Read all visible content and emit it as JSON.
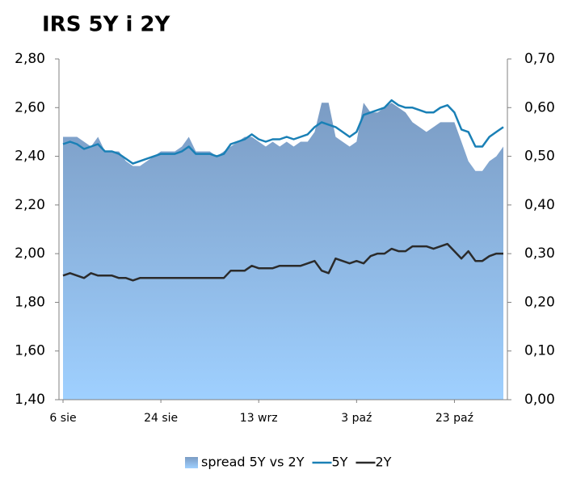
{
  "chart_data": {
    "type": "line",
    "title": "IRS 5Y i 2Y",
    "categories": [
      "6 sie",
      null,
      null,
      null,
      null,
      null,
      null,
      null,
      null,
      null,
      null,
      null,
      null,
      null,
      "24 sie",
      null,
      null,
      null,
      null,
      null,
      null,
      null,
      null,
      null,
      null,
      null,
      null,
      null,
      "13 wrz",
      null,
      null,
      null,
      null,
      null,
      null,
      null,
      null,
      null,
      null,
      null,
      null,
      null,
      "3 paź",
      null,
      null,
      null,
      null,
      null,
      null,
      null,
      null,
      null,
      null,
      null,
      null,
      null,
      "23 paź",
      null,
      null,
      null,
      null,
      null,
      null,
      null
    ],
    "series": [
      {
        "name": "spread 5Y vs 2Y",
        "type": "area",
        "axis": "y2",
        "color": "#7b9cc4",
        "color_bottom": "#9fd0ff",
        "values": [
          0.54,
          0.54,
          0.54,
          0.53,
          0.52,
          0.54,
          0.51,
          0.51,
          0.51,
          0.49,
          0.48,
          0.48,
          0.49,
          0.5,
          0.51,
          0.51,
          0.51,
          0.52,
          0.54,
          0.51,
          0.51,
          0.51,
          0.5,
          0.51,
          0.52,
          0.53,
          0.54,
          0.54,
          0.53,
          0.52,
          0.53,
          0.52,
          0.53,
          0.52,
          0.53,
          0.53,
          0.55,
          0.61,
          0.61,
          0.54,
          0.53,
          0.52,
          0.53,
          0.61,
          0.59,
          0.59,
          0.6,
          0.61,
          0.6,
          0.59,
          0.57,
          0.56,
          0.55,
          0.56,
          0.57,
          0.57,
          0.57,
          0.53,
          0.49,
          0.47,
          0.47,
          0.49,
          0.5,
          0.52
        ]
      },
      {
        "name": "5Y",
        "color": "#1a80b6",
        "values": [
          2.45,
          2.46,
          2.45,
          2.43,
          2.44,
          2.45,
          2.42,
          2.42,
          2.41,
          2.39,
          2.37,
          2.38,
          2.39,
          2.4,
          2.41,
          2.41,
          2.41,
          2.42,
          2.44,
          2.41,
          2.41,
          2.41,
          2.4,
          2.41,
          2.45,
          2.46,
          2.47,
          2.49,
          2.47,
          2.46,
          2.47,
          2.47,
          2.48,
          2.47,
          2.48,
          2.49,
          2.52,
          2.54,
          2.53,
          2.52,
          2.5,
          2.48,
          2.5,
          2.57,
          2.58,
          2.59,
          2.6,
          2.63,
          2.61,
          2.6,
          2.6,
          2.59,
          2.58,
          2.58,
          2.6,
          2.61,
          2.58,
          2.51,
          2.5,
          2.44,
          2.44,
          2.48,
          2.5,
          2.52
        ]
      },
      {
        "name": "2Y",
        "color": "#2b2b2b",
        "values": [
          1.91,
          1.92,
          1.91,
          1.9,
          1.92,
          1.91,
          1.91,
          1.91,
          1.9,
          1.9,
          1.89,
          1.9,
          1.9,
          1.9,
          1.9,
          1.9,
          1.9,
          1.9,
          1.9,
          1.9,
          1.9,
          1.9,
          1.9,
          1.9,
          1.93,
          1.93,
          1.93,
          1.95,
          1.94,
          1.94,
          1.94,
          1.95,
          1.95,
          1.95,
          1.95,
          1.96,
          1.97,
          1.93,
          1.92,
          1.98,
          1.97,
          1.96,
          1.97,
          1.96,
          1.99,
          2.0,
          2.0,
          2.02,
          2.01,
          2.01,
          2.03,
          2.03,
          2.03,
          2.02,
          2.03,
          2.04,
          2.01,
          1.98,
          2.01,
          1.97,
          1.97,
          1.99,
          2.0,
          2.0
        ]
      }
    ],
    "ylim": [
      1.4,
      2.8
    ],
    "yticks": [
      {
        "value": 1.4,
        "label": "1,40"
      },
      {
        "value": 1.6,
        "label": "1,60"
      },
      {
        "value": 1.8,
        "label": "1,80"
      },
      {
        "value": 2.0,
        "label": "2,00"
      },
      {
        "value": 2.2,
        "label": "2,20"
      },
      {
        "value": 2.4,
        "label": "2,40"
      },
      {
        "value": 2.6,
        "label": "2,60"
      },
      {
        "value": 2.8,
        "label": "2,80"
      }
    ],
    "y2lim": [
      0,
      0.7
    ],
    "y2ticks": [
      {
        "value": 0,
        "label": "0,00"
      },
      {
        "value": 0.1,
        "label": "0,10"
      },
      {
        "value": 0.2,
        "label": "0,20"
      },
      {
        "value": 0.3,
        "label": "0,30"
      },
      {
        "value": 0.4,
        "label": "0,40"
      },
      {
        "value": 0.5,
        "label": "0,50"
      },
      {
        "value": 0.6,
        "label": "0,60"
      },
      {
        "value": 0.7,
        "label": "0,70"
      }
    ],
    "grid": false,
    "legend": "bottom"
  }
}
